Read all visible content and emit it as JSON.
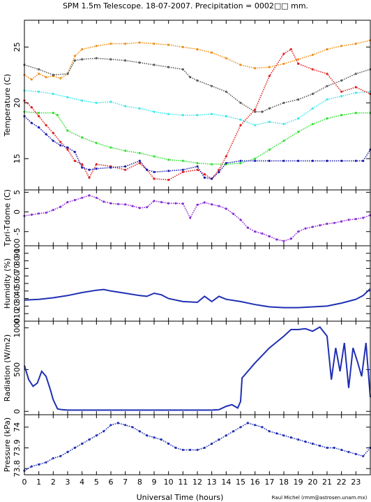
{
  "title": "SPM 1.5m Telescope. 18-07-2007. Precipitation = 0002□□ mm.",
  "xlabel": "Universal Time (hours)",
  "credit": "Raul Michel (rmm@astrosen.unam.mx)",
  "xticks": [
    "0",
    "1",
    "2",
    "3",
    "4",
    "5",
    "6",
    "7",
    "8",
    "9",
    "10",
    "11",
    "12",
    "13",
    "14",
    "15",
    "16",
    "17",
    "18",
    "19",
    "20",
    "21",
    "22",
    "23"
  ],
  "xlim": [
    0,
    24
  ],
  "chart_data": [
    {
      "type": "scatter",
      "ylabel": "Temperature (C)",
      "ylim": [
        12.2,
        27.4
      ],
      "yticks": [
        15,
        20,
        25
      ],
      "series": [
        {
          "color": "#ef8f1a",
          "x": [
            0,
            0.5,
            1,
            1.5,
            2,
            2.5,
            3,
            3.5,
            4,
            5,
            6,
            7,
            8,
            9,
            10,
            11,
            12,
            13,
            14,
            15,
            16,
            17,
            18,
            19,
            20,
            21,
            22,
            23,
            24
          ],
          "y": [
            22.5,
            22.1,
            22.6,
            22.3,
            22.4,
            22.2,
            22.6,
            24.2,
            24.8,
            25.1,
            25.3,
            25.3,
            25.4,
            25.3,
            25.2,
            25.0,
            24.8,
            24.5,
            24.0,
            23.4,
            23.1,
            23.2,
            23.5,
            23.9,
            24.3,
            24.8,
            25.1,
            25.3,
            25.6
          ]
        },
        {
          "color": "#5a5a5a",
          "x": [
            0,
            1,
            2,
            3,
            3.5,
            4,
            5,
            6,
            7,
            8,
            9,
            10,
            11,
            11.5,
            12,
            13,
            14,
            15,
            16,
            16.5,
            17,
            18,
            19,
            20,
            21,
            22,
            23,
            24
          ],
          "y": [
            23.4,
            23.0,
            22.5,
            22.6,
            23.8,
            23.9,
            24.0,
            23.9,
            23.8,
            23.6,
            23.4,
            23.2,
            23.0,
            22.3,
            22.0,
            21.5,
            21.0,
            20.0,
            19.2,
            19.2,
            19.5,
            20.0,
            20.3,
            20.8,
            21.5,
            22.0,
            22.6,
            23.0
          ]
        },
        {
          "color": "#3de8e8",
          "x": [
            0,
            1,
            2,
            3,
            4,
            5,
            6,
            7,
            8,
            9,
            10,
            11,
            12,
            13,
            14,
            15,
            16,
            17,
            18,
            19,
            20,
            21,
            22,
            23,
            24
          ],
          "y": [
            21.1,
            21.0,
            20.8,
            20.5,
            20.2,
            20.0,
            20.1,
            19.7,
            19.5,
            19.2,
            19.0,
            18.9,
            18.9,
            19.0,
            18.8,
            18.5,
            18.0,
            18.3,
            18.1,
            18.6,
            19.5,
            20.3,
            20.6,
            20.9,
            21.0
          ]
        },
        {
          "color": "#2ee02e",
          "x": [
            0,
            1,
            2,
            2.3,
            3,
            4,
            5,
            6,
            7,
            8,
            9,
            10,
            11,
            12,
            13,
            14,
            15,
            16,
            17,
            18,
            19,
            20,
            21,
            22,
            23,
            24
          ],
          "y": [
            19.2,
            19.1,
            19.1,
            18.9,
            17.5,
            16.9,
            16.4,
            16.0,
            15.7,
            15.5,
            15.2,
            14.9,
            14.8,
            14.6,
            14.5,
            14.5,
            14.6,
            15.0,
            15.8,
            16.6,
            17.4,
            18.1,
            18.6,
            18.9,
            19.1,
            19.1
          ]
        },
        {
          "color": "#e02020",
          "x": [
            0,
            0.5,
            1,
            1.5,
            2,
            2.5,
            3,
            3.5,
            4,
            4.5,
            5,
            6,
            7,
            8,
            8.5,
            9,
            10,
            11,
            12,
            12.5,
            13,
            13.5,
            14,
            15,
            16,
            17,
            18,
            18.5,
            19,
            20,
            21,
            22,
            23,
            24
          ],
          "y": [
            20.2,
            19.6,
            18.8,
            18.0,
            17.3,
            16.5,
            15.8,
            14.8,
            14.5,
            13.3,
            14.5,
            14.3,
            14.0,
            14.6,
            14.0,
            13.2,
            13.1,
            13.8,
            14.0,
            13.6,
            13.2,
            14.0,
            15.2,
            18.0,
            19.4,
            22.4,
            24.4,
            24.8,
            23.5,
            23.0,
            22.6,
            21.0,
            21.4,
            20.8
          ]
        },
        {
          "color": "#1f1fb3",
          "x": [
            0,
            0.5,
            1,
            1.5,
            2,
            2.5,
            3,
            3.5,
            4,
            4.5,
            5,
            6,
            7,
            8,
            8.5,
            9,
            10,
            11,
            12,
            12.5,
            13,
            13.5,
            14,
            15,
            16,
            17,
            18,
            19,
            20,
            21,
            22,
            23,
            23.5,
            24
          ],
          "y": [
            18.8,
            18.2,
            17.8,
            17.2,
            16.6,
            16.2,
            16.0,
            15.6,
            14.2,
            14.0,
            14.1,
            14.2,
            14.3,
            14.8,
            14.0,
            13.8,
            13.9,
            14.0,
            14.3,
            13.3,
            13.2,
            13.8,
            14.6,
            14.8,
            14.8,
            14.8,
            14.8,
            14.8,
            14.8,
            14.8,
            14.8,
            14.8,
            14.8,
            15.8
          ]
        }
      ]
    },
    {
      "type": "scatter",
      "ylabel": "Tpri-Tdome (C)",
      "ylim": [
        -8.6,
        5.6
      ],
      "yticks": [
        -5,
        0,
        5
      ],
      "series": [
        {
          "color": "#8b2fd6",
          "x": [
            0,
            0.5,
            1,
            1.5,
            2,
            2.5,
            3,
            3.5,
            4,
            4.5,
            5,
            5.5,
            6,
            6.5,
            7,
            7.5,
            8,
            8.5,
            9,
            9.5,
            10,
            10.5,
            11,
            11.5,
            12,
            12.5,
            13,
            13.5,
            14,
            14.5,
            15,
            15.5,
            16,
            16.5,
            17,
            17.5,
            18,
            18.5,
            19,
            19.5,
            20,
            20.5,
            21,
            21.5,
            22,
            22.5,
            23,
            23.5,
            24
          ],
          "y": [
            -1.0,
            -0.7,
            -0.4,
            -0.2,
            0.5,
            1.3,
            2.5,
            3.0,
            3.6,
            4.2,
            3.6,
            2.6,
            2.2,
            2.0,
            1.9,
            1.5,
            1.0,
            1.2,
            2.8,
            2.5,
            2.2,
            2.2,
            2.1,
            -1.5,
            1.8,
            2.4,
            1.9,
            1.5,
            0.8,
            -0.5,
            -2.0,
            -4.0,
            -5.0,
            -5.5,
            -6.2,
            -7.0,
            -7.4,
            -6.8,
            -5.0,
            -4.2,
            -3.8,
            -3.4,
            -3.0,
            -2.8,
            -2.4,
            -2.0,
            -1.8,
            -1.5,
            -0.8
          ]
        }
      ]
    },
    {
      "type": "line",
      "ylabel": "Humidity (%)",
      "ylim": [
        0,
        100
      ],
      "yticks": [
        0,
        10,
        20,
        30,
        40,
        50,
        60,
        70,
        80,
        90,
        100
      ],
      "series": [
        {
          "color": "#1f2fb3",
          "x": [
            0,
            1,
            2,
            3,
            4,
            5,
            5.5,
            6,
            7,
            8,
            8.5,
            9,
            9.5,
            10,
            11,
            12,
            12.5,
            13,
            13.5,
            14,
            15,
            16,
            17,
            18,
            19,
            20,
            21,
            22,
            23,
            23.5,
            24
          ],
          "y": [
            28,
            29,
            31,
            34,
            38,
            41,
            42,
            40,
            37,
            34,
            33,
            37,
            35,
            30,
            26,
            25,
            33,
            26,
            33,
            29,
            26,
            22,
            19,
            18,
            18,
            19,
            20,
            24,
            29,
            34,
            43
          ]
        }
      ]
    },
    {
      "type": "line",
      "ylabel": "Radiation (W/m2)",
      "ylim": [
        -40,
        1080
      ],
      "yticks": [
        0,
        500,
        1000
      ],
      "series": [
        {
          "color": "#1f2fb3",
          "x": [
            0,
            0.3,
            0.6,
            0.9,
            1.2,
            1.5,
            1.8,
            2.0,
            2.3,
            2.6,
            3,
            4,
            5,
            6,
            7,
            8,
            9,
            10,
            11,
            12,
            13,
            13.5,
            14,
            14.4,
            14.8,
            15.0,
            15.1,
            16,
            17,
            18,
            18.5,
            19,
            19.5,
            20,
            20.5,
            21,
            21.3,
            21.6,
            21.9,
            22.2,
            22.5,
            22.8,
            23.1,
            23.4,
            23.7,
            24
          ],
          "y": [
            550,
            380,
            300,
            340,
            480,
            420,
            260,
            140,
            30,
            20,
            15,
            15,
            15,
            15,
            15,
            15,
            15,
            15,
            15,
            15,
            15,
            20,
            60,
            80,
            40,
            120,
            400,
            580,
            760,
            900,
            980,
            980,
            990,
            960,
            1010,
            900,
            380,
            760,
            480,
            820,
            280,
            760,
            600,
            420,
            820,
            170
          ]
        }
      ]
    },
    {
      "type": "scatter",
      "ylabel": "Pressure (kPa)",
      "ylim": [
        73.77,
        74.06
      ],
      "yticks": [
        73.8,
        73.9,
        74
      ],
      "series": [
        {
          "color": "#1f2fb3",
          "x": [
            0,
            0.5,
            1,
            1.5,
            2,
            2.5,
            3,
            3.5,
            4,
            4.5,
            5,
            5.5,
            6,
            6.5,
            7,
            7.5,
            8,
            8.5,
            9,
            9.5,
            10,
            10.5,
            11,
            11.5,
            12,
            12.5,
            13,
            13.5,
            14,
            14.5,
            15,
            15.5,
            16,
            16.5,
            17,
            17.5,
            18,
            18.5,
            19,
            19.5,
            20,
            20.5,
            21,
            21.5,
            22,
            22.5,
            23,
            23.5,
            24
          ],
          "y": [
            73.79,
            73.81,
            73.82,
            73.83,
            73.85,
            73.86,
            73.88,
            73.9,
            73.92,
            73.94,
            73.96,
            73.98,
            74.01,
            74.02,
            74.01,
            74.0,
            73.98,
            73.96,
            73.95,
            73.94,
            73.92,
            73.9,
            73.89,
            73.89,
            73.89,
            73.9,
            73.92,
            73.94,
            73.96,
            73.98,
            74.0,
            74.02,
            74.01,
            74.0,
            73.98,
            73.97,
            73.96,
            73.95,
            73.94,
            73.93,
            73.92,
            73.91,
            73.9,
            73.9,
            73.89,
            73.88,
            73.87,
            73.86,
            73.9
          ]
        }
      ]
    }
  ]
}
